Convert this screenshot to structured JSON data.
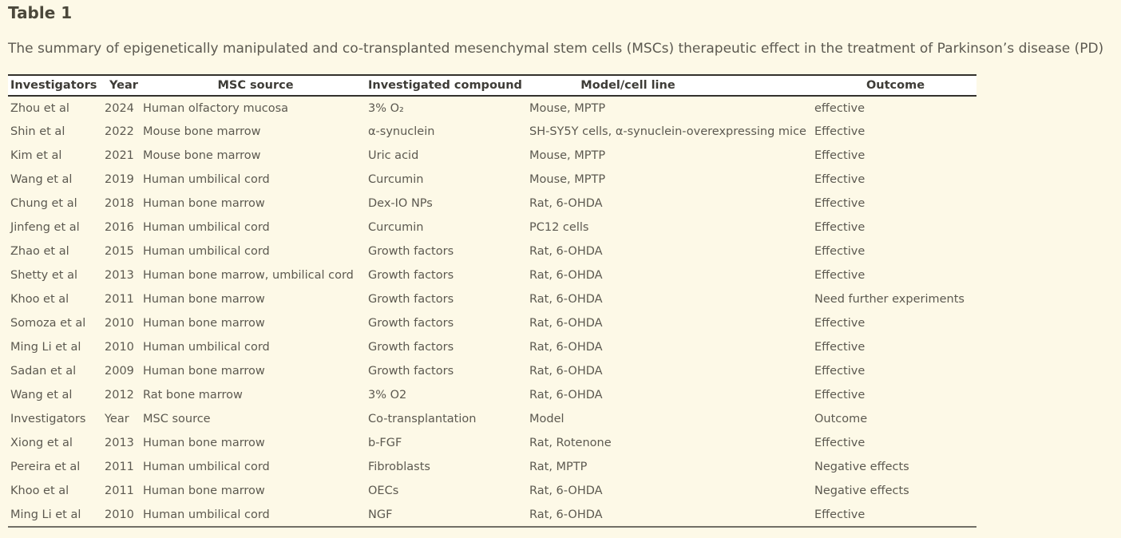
{
  "page": {
    "title": "Table 1",
    "caption": "The summary of epigenetically manipulated and co-transplanted mesenchymal stem cells (MSCs) therapeutic effect in the treatment of Parkinson’s disease (PD)"
  },
  "table": {
    "columns": [
      "Investigators",
      "Year",
      "MSC source",
      "Investigated compound",
      "Model/cell line",
      "Outcome"
    ],
    "rows": [
      [
        "Zhou et al",
        "2024",
        "Human olfactory mucosa",
        "3% O₂",
        "Mouse, MPTP",
        "effective"
      ],
      [
        "Shin et al",
        "2022",
        "Mouse bone marrow",
        "α-synuclein",
        "SH-SY5Y cells, α-synuclein-overexpressing mice",
        "Effective"
      ],
      [
        "Kim et al",
        "2021",
        "Mouse bone marrow",
        "Uric acid",
        "Mouse, MPTP",
        "Effective"
      ],
      [
        "Wang et al",
        "2019",
        "Human umbilical cord",
        "Curcumin",
        "Mouse, MPTP",
        "Effective"
      ],
      [
        "Chung et al",
        "2018",
        "Human bone marrow",
        "Dex-IO NPs",
        "Rat, 6-OHDA",
        "Effective"
      ],
      [
        "Jinfeng et al",
        "2016",
        "Human umbilical cord",
        "Curcumin",
        "PC12 cells",
        "Effective"
      ],
      [
        "Zhao et al",
        "2015",
        "Human umbilical cord",
        "Growth factors",
        "Rat, 6-OHDA",
        "Effective"
      ],
      [
        "Shetty et al",
        "2013",
        "Human bone marrow, umbilical cord",
        "Growth factors",
        "Rat, 6-OHDA",
        "Effective"
      ],
      [
        "Khoo et al",
        "2011",
        "Human bone marrow",
        "Growth factors",
        "Rat, 6-OHDA",
        "Need further experiments"
      ],
      [
        "Somoza et al",
        "2010",
        "Human bone marrow",
        "Growth factors",
        "Rat, 6-OHDA",
        "Effective"
      ],
      [
        "Ming Li et al",
        "2010",
        "Human umbilical cord",
        "Growth factors",
        "Rat, 6-OHDA",
        "Effective"
      ],
      [
        "Sadan et al",
        "2009",
        "Human bone marrow",
        "Growth factors",
        "Rat, 6-OHDA",
        "Effective"
      ],
      [
        "Wang et al",
        "2012",
        "Rat bone marrow",
        "3% O2",
        "Rat, 6-OHDA",
        "Effective"
      ],
      [
        "Investigators",
        "Year",
        "MSC source",
        "Co-transplantation",
        "Model",
        "Outcome"
      ],
      [
        "Xiong et al",
        "2013",
        "Human bone marrow",
        "b-FGF",
        "Rat, Rotenone",
        "Effective"
      ],
      [
        "Pereira et al",
        "2011",
        "Human umbilical cord",
        "Fibroblasts",
        "Rat, MPTP",
        "Negative effects"
      ],
      [
        "Khoo et al",
        "2011",
        "Human bone marrow",
        "OECs",
        "Rat, 6-OHDA",
        "Negative effects"
      ],
      [
        "Ming Li et al",
        "2010",
        "Human umbilical cord",
        "NGF",
        "Rat, 6-OHDA",
        "Effective"
      ]
    ]
  },
  "colors": {
    "page_bg": "#fdf9e7",
    "header_bg": "#ffffff",
    "title_text": "#4b483b",
    "heading_text": "#3e3c37",
    "text": "#5c5950",
    "border_dark": "#33312c",
    "border_muted": "#716f66"
  }
}
